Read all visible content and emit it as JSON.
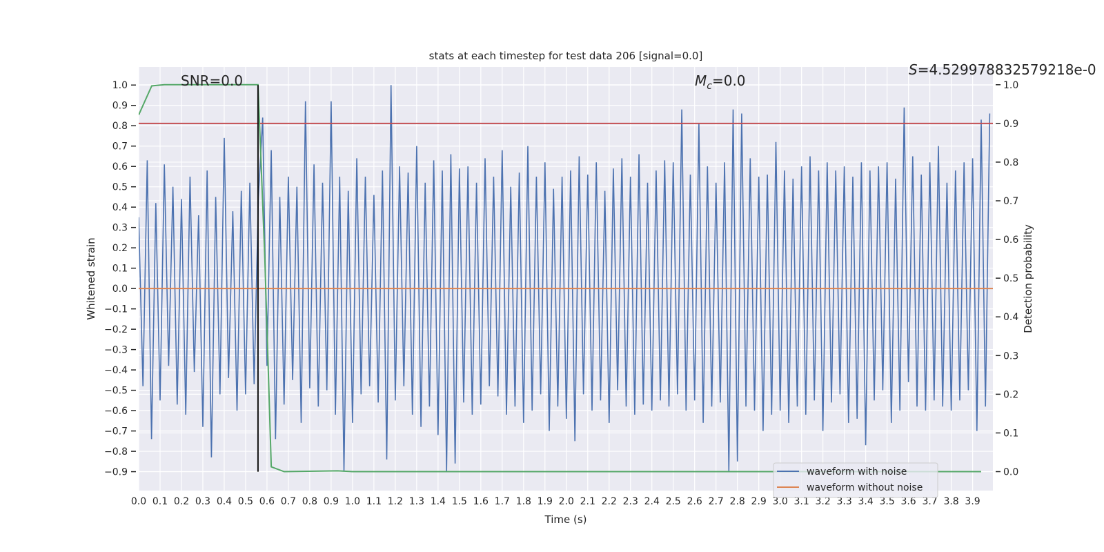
{
  "chart_data": {
    "type": "line",
    "title": "stats at each timestep for test data 206 [signal=0.0]",
    "xlabel": "Time (s)",
    "ylabel": "Whitened strain",
    "ylabel_right": "Detection probability",
    "xlim": [
      0,
      3.995
    ],
    "ylim": [
      -0.993,
      1.089
    ],
    "ylim_right": [
      -0.049,
      1.046
    ],
    "grid": true,
    "legend_position": "bottom-right",
    "xticks": [
      "0.0",
      "0.1",
      "0.2",
      "0.3",
      "0.4",
      "0.5",
      "0.6",
      "0.7",
      "0.8",
      "0.9",
      "1.0",
      "1.1",
      "1.2",
      "1.3",
      "1.4",
      "1.5",
      "1.6",
      "1.7",
      "1.8",
      "1.9",
      "2.0",
      "2.1",
      "2.2",
      "2.3",
      "2.4",
      "2.5",
      "2.6",
      "2.7",
      "2.8",
      "2.9",
      "3.0",
      "3.1",
      "3.2",
      "3.3",
      "3.4",
      "3.5",
      "3.6",
      "3.7",
      "3.8",
      "3.9"
    ],
    "yticks": [
      "1.0",
      "0.9",
      "0.8",
      "0.7",
      "0.6",
      "0.5",
      "0.4",
      "0.3",
      "0.2",
      "0.1",
      "0.0",
      "−0.1",
      "−0.2",
      "−0.3",
      "−0.4",
      "−0.5",
      "−0.6",
      "−0.7",
      "−0.8",
      "−0.9"
    ],
    "yticks_right": [
      "1.0",
      "0.9",
      "0.8",
      "0.7",
      "0.6",
      "0.5",
      "0.4",
      "0.3",
      "0.2",
      "0.1",
      "0.0"
    ],
    "annotations": {
      "snr": "SNR=0.0",
      "mc_symbol": "M",
      "mc_sub": "c",
      "mc_value": "=0.0",
      "s_symbol": "S",
      "s_value": "=4.529978832579218e-0"
    },
    "series": [
      {
        "name": "waveform with noise",
        "axis": "left",
        "color": "#4c72b0",
        "t_start": 0,
        "dt": 0.02,
        "values": [
          0.35,
          -0.48,
          0.63,
          -0.74,
          0.42,
          -0.55,
          0.61,
          -0.38,
          0.5,
          -0.57,
          0.44,
          -0.62,
          0.55,
          -0.41,
          0.36,
          -0.68,
          0.58,
          -0.83,
          0.45,
          -0.52,
          0.74,
          -0.44,
          0.38,
          -0.6,
          0.48,
          -0.52,
          0.52,
          -0.47,
          0.45,
          0.84,
          -0.38,
          0.68,
          -0.74,
          0.45,
          -0.57,
          0.55,
          -0.45,
          0.5,
          -0.66,
          0.92,
          -0.49,
          0.61,
          -0.58,
          0.52,
          -0.5,
          0.92,
          -0.62,
          0.55,
          -0.9,
          0.48,
          -0.66,
          0.64,
          -0.52,
          0.55,
          -0.48,
          0.46,
          -0.56,
          0.58,
          -0.84,
          1.0,
          -0.55,
          0.6,
          -0.48,
          0.57,
          -0.62,
          0.7,
          -0.68,
          0.52,
          -0.58,
          0.63,
          -0.72,
          0.58,
          -0.9,
          0.66,
          -0.86,
          0.59,
          -0.56,
          0.6,
          -0.62,
          0.52,
          -0.57,
          0.64,
          -0.48,
          0.55,
          -0.53,
          0.68,
          -0.62,
          0.5,
          -0.58,
          0.57,
          -0.66,
          0.7,
          -0.6,
          0.55,
          -0.52,
          0.62,
          -0.7,
          0.49,
          -0.58,
          0.55,
          -0.64,
          0.58,
          -0.75,
          0.65,
          -0.52,
          0.56,
          -0.6,
          0.62,
          -0.55,
          0.48,
          -0.66,
          0.59,
          -0.5,
          0.64,
          -0.58,
          0.55,
          -0.62,
          0.66,
          -0.57,
          0.52,
          -0.6,
          0.58,
          -0.55,
          0.63,
          -0.58,
          0.62,
          -0.52,
          0.88,
          -0.6,
          0.56,
          -0.55,
          0.81,
          -0.66,
          0.6,
          -0.58,
          0.52,
          -0.56,
          0.62,
          -0.9,
          0.88,
          -0.85,
          0.86,
          -0.58,
          0.64,
          -0.6,
          0.55,
          -0.7,
          0.56,
          -0.62,
          0.72,
          -0.6,
          0.58,
          -0.66,
          0.54,
          -0.58,
          0.6,
          -0.62,
          0.65,
          -0.55,
          0.58,
          -0.7,
          0.62,
          -0.56,
          0.58,
          -0.52,
          0.6,
          -0.66,
          0.55,
          -0.64,
          0.62,
          -0.77,
          0.58,
          -0.55,
          0.6,
          -0.5,
          0.62,
          -0.66,
          0.54,
          -0.6,
          0.89,
          -0.46,
          0.65,
          -0.58,
          0.56,
          -0.6,
          0.62,
          -0.55,
          0.7,
          -0.58,
          0.52,
          -0.6,
          0.58,
          -0.55,
          0.62,
          -0.5,
          0.64,
          -0.7,
          0.83,
          -0.58,
          0.86
        ]
      },
      {
        "name": "waveform without noise",
        "axis": "left",
        "color": "#dd8452",
        "x": [
          0,
          3.995
        ],
        "y": [
          0,
          0
        ]
      },
      {
        "axis": "right",
        "color": "#55a868",
        "x": [
          0,
          0.061,
          0.12,
          0.558,
          0.59,
          0.62,
          0.68,
          0.93,
          1.0,
          3.94
        ],
        "y": [
          0.922,
          0.997,
          1.0,
          1.0,
          0.55,
          0.0125,
          0.0,
          0.002,
          0.0,
          0.0
        ]
      }
    ],
    "threshold": {
      "axis": "right",
      "value": 0.9,
      "color": "#c44e52"
    },
    "marker_line": {
      "x": 0.558,
      "y_from": -0.9,
      "y_to": 1.0,
      "color": "#111111"
    }
  }
}
